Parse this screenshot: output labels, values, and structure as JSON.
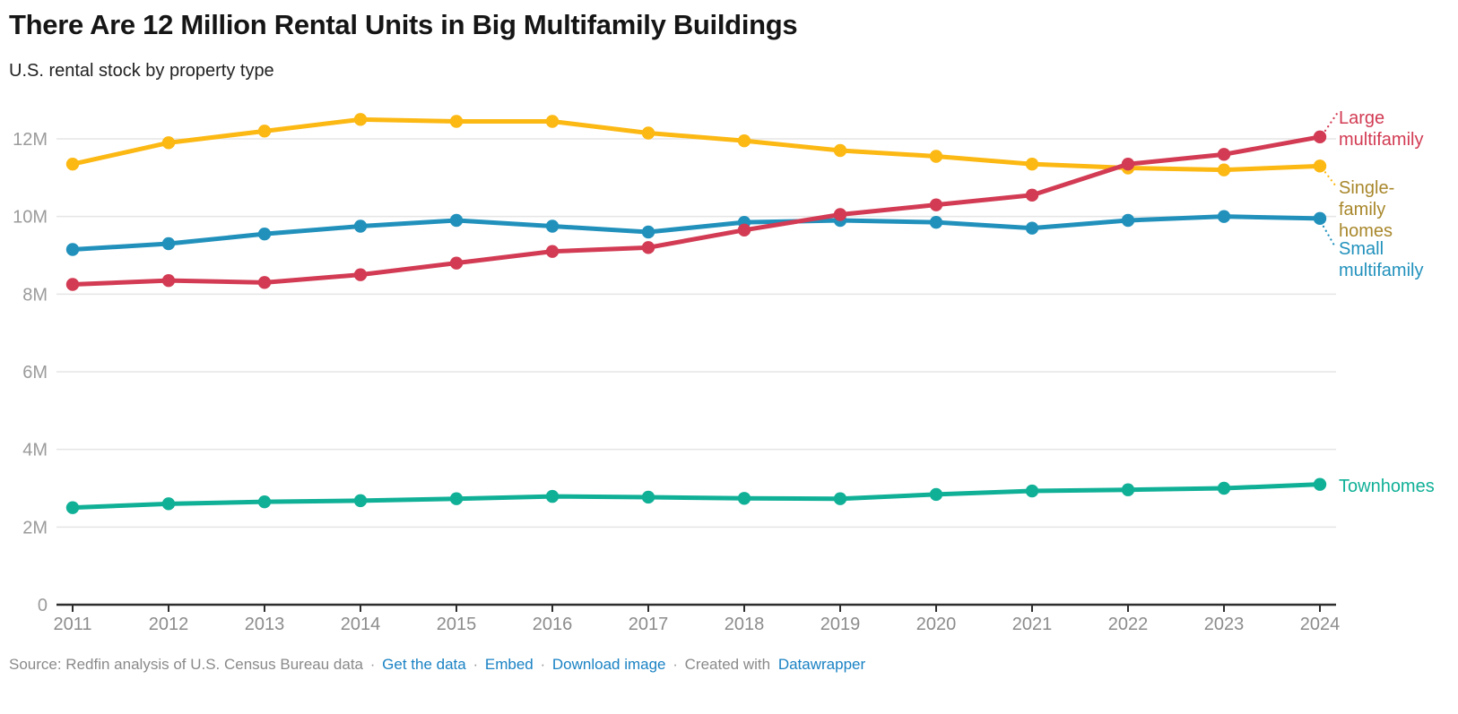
{
  "header": {
    "title": "There Are 12 Million Rental Units in Big Multifamily Buildings",
    "subtitle": "U.S. rental stock by property type"
  },
  "chart_data": {
    "type": "line",
    "title": "There Are 12 Million Rental Units in Big Multifamily Buildings",
    "subtitle": "U.S. rental stock by property type",
    "x": [
      2011,
      2012,
      2013,
      2014,
      2015,
      2016,
      2017,
      2018,
      2019,
      2020,
      2021,
      2022,
      2023,
      2024
    ],
    "unit": "M",
    "ylim": [
      0,
      12.6
    ],
    "ytick_values": [
      0,
      2,
      4,
      6,
      8,
      10,
      12
    ],
    "ytick_labels": [
      "0",
      "2M",
      "4M",
      "6M",
      "8M",
      "10M",
      "12M"
    ],
    "grid": "horizontal",
    "legend_position": "right-edge-labels",
    "series": [
      {
        "name": "Small multifamily",
        "color": "#2191bc",
        "label_color": "#2191bc",
        "label_lines": [
          "Small",
          "multifamily"
        ],
        "values": [
          9.15,
          9.3,
          9.55,
          9.75,
          9.9,
          9.75,
          9.6,
          9.85,
          9.9,
          9.85,
          9.7,
          9.9,
          10.0,
          9.95
        ]
      },
      {
        "name": "Single-family homes",
        "color": "#fcb813",
        "label_color": "#a8872b",
        "label_lines": [
          "Single-",
          "family",
          "homes"
        ],
        "values": [
          11.35,
          11.9,
          12.2,
          12.5,
          12.45,
          12.45,
          12.15,
          11.95,
          11.7,
          11.55,
          11.35,
          11.25,
          11.2,
          11.3
        ]
      },
      {
        "name": "Townhomes",
        "color": "#10b097",
        "label_color": "#10b097",
        "label_lines": [
          "Townhomes"
        ],
        "values": [
          2.5,
          2.6,
          2.65,
          2.68,
          2.73,
          2.79,
          2.77,
          2.74,
          2.73,
          2.84,
          2.93,
          2.96,
          3.0,
          3.1
        ]
      },
      {
        "name": "Large multifamily",
        "color": "#d23b53",
        "label_color": "#d23b53",
        "label_lines": [
          "Large",
          "multifamily"
        ],
        "values": [
          8.25,
          8.35,
          8.3,
          8.5,
          8.8,
          9.1,
          9.2,
          9.65,
          10.05,
          10.3,
          10.55,
          11.35,
          11.6,
          12.05
        ]
      }
    ]
  },
  "colors": {
    "axis_label": "#9b9b9b",
    "x_label": "#8c8c8c",
    "axis_line": "#2e2e2e",
    "gridline": "#e5e5e5",
    "footer_text": "#8a8a8a",
    "link": "#1a82c4"
  },
  "footer": {
    "source": "Source: Redfin analysis of U.S. Census Bureau data",
    "links": [
      "Get the data",
      "Embed",
      "Download image"
    ],
    "created_with": "Created with",
    "datawrapper": "Datawrapper",
    "separator": "·"
  }
}
